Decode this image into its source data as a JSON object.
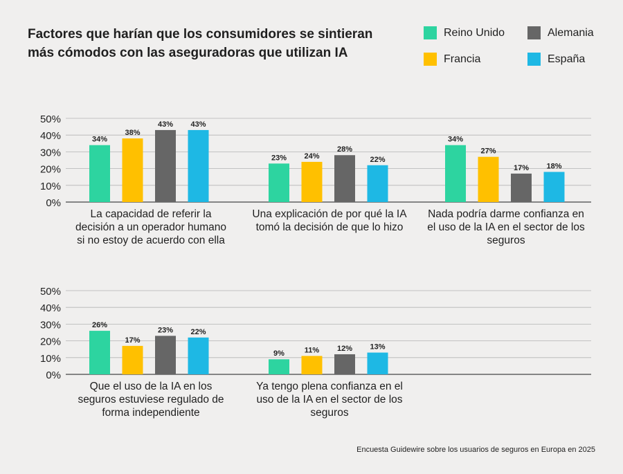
{
  "title": "Factores que harían que los consumidores se sintieran más cómodos con las aseguradoras que utilizan IA",
  "source": "Encuesta Guidewire sobre los usuarios de seguros en Europa en 2025",
  "colors": {
    "Reino Unido": "#2dd4a0",
    "Francia": "#ffc000",
    "Alemania": "#666666",
    "España": "#1eb8e4"
  },
  "legend": [
    {
      "label": "Reino Unido",
      "color": "#2dd4a0"
    },
    {
      "label": "Alemania",
      "color": "#666666"
    },
    {
      "label": "Francia",
      "color": "#ffc000"
    },
    {
      "label": "España",
      "color": "#1eb8e4"
    }
  ],
  "chart_data": [
    {
      "type": "bar",
      "categories": [
        "La capacidad de referir la decisión a un operador humano si no estoy de acuerdo con ella",
        "Una explicación de por qué la IA tomó la decisión de que lo hizo",
        "Nada podría darme confianza en el uso de la IA en el sector de los seguros"
      ],
      "series": [
        {
          "name": "Reino Unido",
          "values": [
            34,
            23,
            34
          ]
        },
        {
          "name": "Francia",
          "values": [
            38,
            24,
            27
          ]
        },
        {
          "name": "Alemania",
          "values": [
            43,
            28,
            17
          ]
        },
        {
          "name": "España",
          "values": [
            43,
            22,
            18
          ]
        }
      ],
      "yticks": [
        "0%",
        "10%",
        "20%",
        "30%",
        "40%",
        "50%"
      ],
      "ylim": [
        0,
        50
      ],
      "grid": true
    },
    {
      "type": "bar",
      "categories": [
        "Que el uso de la IA en los seguros estuviese regulado de forma independiente",
        "Ya tengo plena confianza en el uso de la IA en el sector de los seguros"
      ],
      "series": [
        {
          "name": "Reino Unido",
          "values": [
            26,
            9
          ]
        },
        {
          "name": "Francia",
          "values": [
            17,
            11
          ]
        },
        {
          "name": "Alemania",
          "values": [
            23,
            12
          ]
        },
        {
          "name": "España",
          "values": [
            22,
            13
          ]
        }
      ],
      "yticks": [
        "0%",
        "10%",
        "20%",
        "30%",
        "40%",
        "50%"
      ],
      "ylim": [
        0,
        50
      ],
      "grid": true
    }
  ]
}
